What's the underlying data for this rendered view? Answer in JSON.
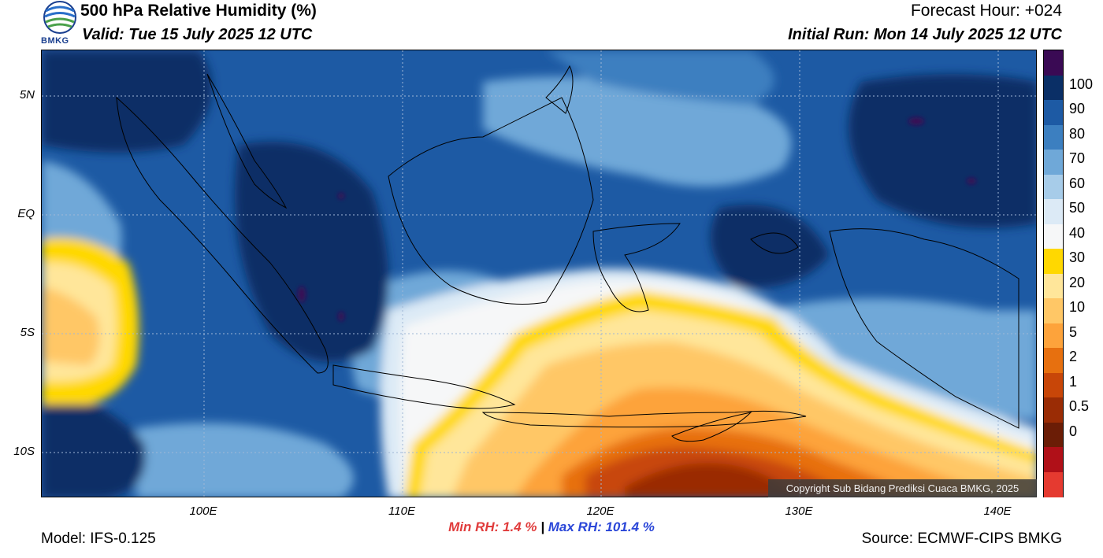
{
  "header": {
    "title": "500 hPa Relative Humidity (%)",
    "valid": "Valid: Tue 15 July 2025 12 UTC",
    "forecast_hour": "Forecast Hour: +024",
    "initial_run": "Initial Run: Mon 14 July 2025 12 UTC",
    "logo_text": "BMKG"
  },
  "map": {
    "lat_labels": [
      "5N",
      "EQ",
      "5S",
      "10S"
    ],
    "lon_labels": [
      "100E",
      "110E",
      "120E",
      "130E",
      "140E"
    ],
    "copyright": "Copyright Sub Bidang Prediksi Cuaca BMKG, 2025"
  },
  "colorbar": {
    "labels": [
      "100",
      "90",
      "80",
      "70",
      "60",
      "50",
      "40",
      "30",
      "20",
      "10",
      "5",
      "2",
      "1",
      "0.5",
      "0"
    ],
    "colors": [
      "#3a0a54",
      "#0a2f66",
      "#1d5aa4",
      "#3c7fc0",
      "#6fa8d8",
      "#a7cce9",
      "#dceaf6",
      "#f6f7f8",
      "#ffd800",
      "#ffe69a",
      "#ffc766",
      "#fda33b",
      "#e7700f",
      "#c84608",
      "#9a2c05",
      "#6b1d06",
      "#b01018",
      "#e53a30"
    ]
  },
  "stats": {
    "min_label": "Min RH:   1.4 %",
    "separator": "|",
    "max_label": "Max RH: 101.4 %"
  },
  "footer": {
    "model": "Model: IFS-0.125",
    "source": "Source: ECMWF-CIPS BMKG"
  }
}
